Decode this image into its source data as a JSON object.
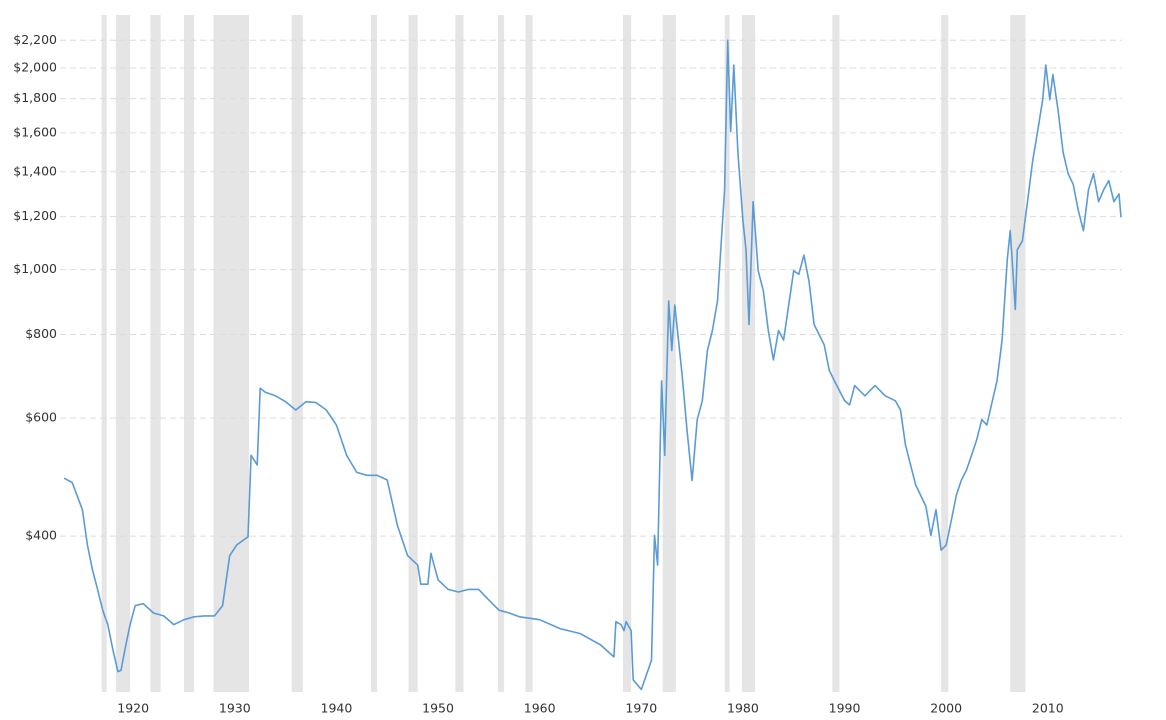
{
  "chart_data": {
    "type": "line",
    "log_scale": true,
    "grid": true,
    "xlim": [
      1912.8,
      2017.3
    ],
    "xticks": [
      1920,
      1930,
      1940,
      1950,
      1960,
      1970,
      1980,
      1990,
      2000,
      2010
    ],
    "ylim": [
      234,
      2400
    ],
    "yticks": [
      {
        "value": 400,
        "label": "$400"
      },
      {
        "value": 600,
        "label": "$600"
      },
      {
        "value": 800,
        "label": "$800"
      },
      {
        "value": 1000,
        "label": "$1,000"
      },
      {
        "value": 1200,
        "label": "$1,200"
      },
      {
        "value": 1400,
        "label": "$1,400"
      },
      {
        "value": 1600,
        "label": "$1,600"
      },
      {
        "value": 1800,
        "label": "$1,800"
      },
      {
        "value": 2000,
        "label": "$2,000"
      },
      {
        "value": 2200,
        "label": "$2,200"
      }
    ],
    "shade_color": "#e5e5e5",
    "shaded_periods": [
      [
        1916.9,
        1917.4
      ],
      [
        1918.3,
        1919.7
      ],
      [
        1921.7,
        1922.7
      ],
      [
        1925.0,
        1926.0
      ],
      [
        1927.9,
        1931.4
      ],
      [
        1935.6,
        1936.7
      ],
      [
        1943.4,
        1944.0
      ],
      [
        1947.1,
        1948.0
      ],
      [
        1951.7,
        1952.5
      ],
      [
        1955.9,
        1956.5
      ],
      [
        1958.6,
        1959.3
      ],
      [
        1968.2,
        1969.0
      ],
      [
        1972.1,
        1973.4
      ],
      [
        1978.2,
        1978.7
      ],
      [
        1979.9,
        1981.2
      ],
      [
        1988.8,
        1989.5
      ],
      [
        1999.5,
        2000.2
      ],
      [
        2006.3,
        2007.8
      ]
    ],
    "series": [
      {
        "color": "#5b9bd5",
        "x": [
          1913.2,
          1914,
          1915,
          1915.5,
          1916,
          1916.5,
          1917,
          1917.5,
          1918,
          1918.5,
          1918.8,
          1919.2,
          1919.7,
          1920.2,
          1921,
          1922,
          1923,
          1924,
          1925,
          1926,
          1927,
          1928,
          1928.8,
          1929.5,
          1930.2,
          1931.3,
          1931.6,
          1932.2,
          1932.5,
          1933,
          1934,
          1935,
          1936,
          1937,
          1938,
          1939,
          1940,
          1941,
          1942,
          1943,
          1944,
          1945,
          1946,
          1947,
          1948,
          1948.3,
          1949,
          1949.3,
          1950,
          1951,
          1952,
          1953,
          1954,
          1955,
          1956,
          1957,
          1958,
          1960,
          1962,
          1964,
          1966,
          1967.3,
          1967.5,
          1968,
          1968.3,
          1968.5,
          1969,
          1969.2,
          1970,
          1971,
          1971.3,
          1971.6,
          1972,
          1972.3,
          1972.7,
          1973,
          1973.3,
          1974,
          1974.5,
          1975,
          1975.5,
          1976,
          1976.5,
          1977,
          1977.5,
          1978.2,
          1978.5,
          1978.8,
          1979.1,
          1979.5,
          1980,
          1980.3,
          1980.6,
          1981,
          1981.5,
          1982,
          1982.5,
          1983,
          1983.5,
          1984,
          1984.5,
          1985,
          1985.5,
          1986,
          1986.5,
          1987,
          1988,
          1988.5,
          1989,
          1990,
          1990.5,
          1991,
          1992,
          1993,
          1994,
          1995,
          1995.5,
          1996,
          1997,
          1998,
          1998.5,
          1999,
          1999.5,
          2000,
          2000.5,
          2001,
          2001.5,
          2002,
          2002.5,
          2003,
          2003.5,
          2004,
          2005,
          2005.5,
          2006,
          2006.3,
          2006.5,
          2006.8,
          2007,
          2007.5,
          2008,
          2008.5,
          2009,
          2009.5,
          2009.8,
          2010.2,
          2010.5,
          2011,
          2011.5,
          2012,
          2012.5,
          2013,
          2013.5,
          2014,
          2014.5,
          2015,
          2015.5,
          2016,
          2016.5,
          2017,
          2017.2
        ],
        "values": [
          488,
          481,
          438,
          388,
          356,
          333,
          310,
          295,
          271,
          251,
          252,
          271,
          295,
          315,
          317,
          307,
          304,
          295,
          300,
          303,
          304,
          304,
          315,
          374,
          388,
          399,
          528,
          511,
          665,
          656,
          648,
          635,
          617,
          635,
          633,
          617,
          586,
          528,
          498,
          493,
          493,
          485,
          415,
          374,
          362,
          339,
          339,
          377,
          344,
          333,
          330,
          333,
          333,
          321,
          310,
          307,
          303,
          300,
          291,
          286,
          275,
          264,
          298,
          295,
          289,
          298,
          289,
          244,
          236,
          261,
          401,
          362,
          682,
          528,
          898,
          757,
          885,
          699,
          576,
          484,
          597,
          637,
          757,
          811,
          898,
          1316,
          2200,
          1608,
          2020,
          1497,
          1185,
          1071,
          828,
          1263,
          996,
          930,
          811,
          733,
          811,
          785,
          885,
          996,
          984,
          1051,
          961,
          828,
          772,
          707,
          682,
          637,
          628,
          671,
          648,
          671,
          648,
          637,
          617,
          547,
          477,
          443,
          401,
          438,
          381,
          388,
          422,
          460,
          485,
          502,
          528,
          557,
          597,
          586,
          682,
          785,
          1032,
          1143,
          1032,
          872,
          1071,
          1104,
          1263,
          1451,
          1608,
          1794,
          2020,
          1794,
          1955,
          1733,
          1497,
          1391,
          1341,
          1226,
          1143,
          1316,
          1391,
          1263,
          1316,
          1358,
          1263,
          1297,
          1197
        ]
      }
    ]
  }
}
